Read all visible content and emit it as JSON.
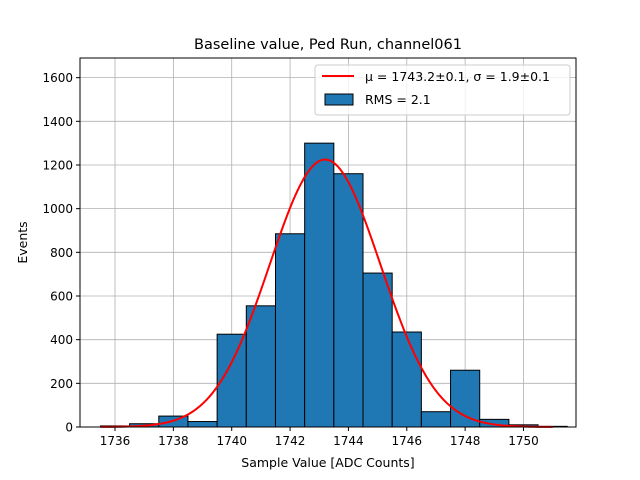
{
  "chart_data": {
    "type": "bar",
    "title": "Baseline value, Ped Run, channel061",
    "xlabel": "Sample Value [ADC Counts]",
    "ylabel": "Events",
    "xlim": [
      1734.8,
      1751.8
    ],
    "ylim": [
      0,
      1690
    ],
    "xticks": [
      1736,
      1738,
      1740,
      1742,
      1744,
      1746,
      1748,
      1750
    ],
    "yticks": [
      0,
      200,
      400,
      600,
      800,
      1000,
      1200,
      1400,
      1600
    ],
    "grid": true,
    "legend_position": "top-right",
    "bin_width": 1,
    "bins": [
      {
        "start": 1735.5,
        "count": 5
      },
      {
        "start": 1736.5,
        "count": 15
      },
      {
        "start": 1737.5,
        "count": 50
      },
      {
        "start": 1738.5,
        "count": 25
      },
      {
        "start": 1739.5,
        "count": 425
      },
      {
        "start": 1740.5,
        "count": 555
      },
      {
        "start": 1741.5,
        "count": 885
      },
      {
        "start": 1742.5,
        "count": 1300
      },
      {
        "start": 1743.5,
        "count": 1160
      },
      {
        "start": 1744.5,
        "count": 705
      },
      {
        "start": 1745.5,
        "count": 435
      },
      {
        "start": 1746.5,
        "count": 70
      },
      {
        "start": 1747.5,
        "count": 260
      },
      {
        "start": 1748.5,
        "count": 35
      },
      {
        "start": 1749.5,
        "count": 10
      },
      {
        "start": 1750.5,
        "count": 3
      }
    ],
    "fit": {
      "mu": 1743.2,
      "sigma": 1.9,
      "amplitude": 1225,
      "x_range": [
        1735.5,
        1751.0
      ],
      "label": "μ = 1743.2±0.1, σ = 1.9±0.1",
      "color": "#ff0000"
    },
    "histogram": {
      "label": "RMS = 2.1",
      "color": "#1f77b4"
    }
  }
}
